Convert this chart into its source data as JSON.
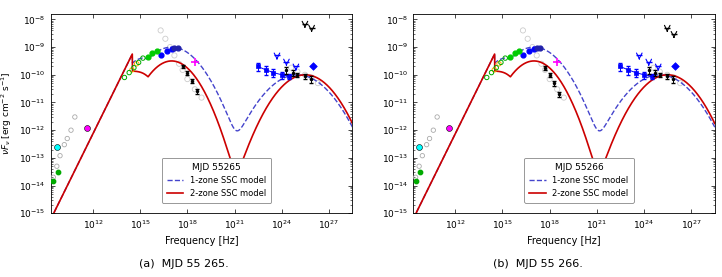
{
  "panel_a_title": "MJD 55265",
  "panel_b_title": "MJD 55266",
  "xlabel": "Frequency [Hz]",
  "ylabel": "$\\nu F_\\nu$ [erg cm$^{-2}$ s$^{-1}$]",
  "caption_a": "(a)  MJD 55 265.",
  "caption_b": "(b)  MJD 55 266.",
  "xlim_log": [
    9.3,
    28.5
  ],
  "ylim_log": [
    -15,
    -7.8
  ],
  "legend_label_title_a": "MJD 55265",
  "legend_label_title_b": "MJD 55266",
  "legend_label_1zone": "1-zone SSC model",
  "legend_label_2zone": "2-zone SSC model",
  "color_1zone": "#4444cc",
  "color_2zone": "#cc0000",
  "background_color": "#ffffff"
}
